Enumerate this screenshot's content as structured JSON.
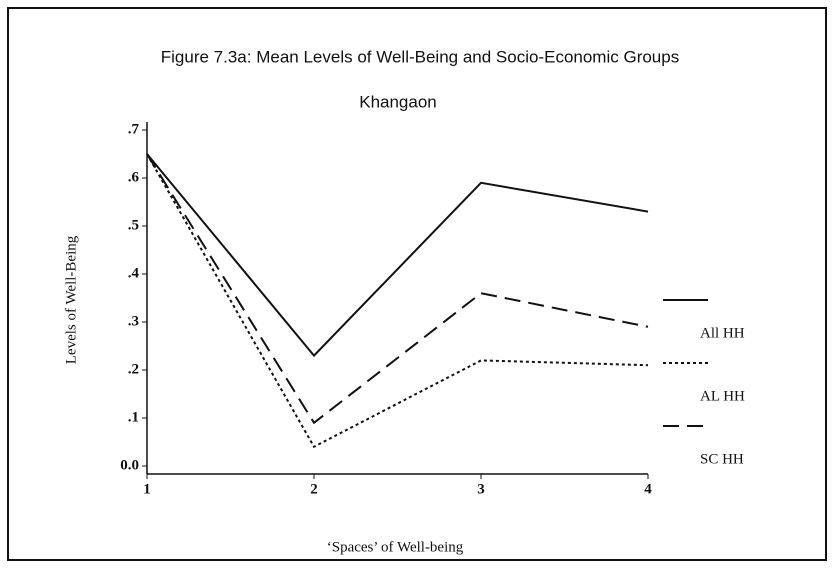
{
  "chart_data": {
    "type": "line",
    "title": "Figure 7.3a: Mean Levels of Well-Being and Socio-Economic Groups",
    "subtitle": "Khangaon",
    "x_label": "‘Spaces’ of Well-being",
    "y_label": "Levels of Well-Being",
    "x": [
      1,
      2,
      3,
      4
    ],
    "series": [
      {
        "name": "All HH",
        "color": "#111111",
        "dash": "solid",
        "values": [
          0.65,
          0.23,
          0.59,
          0.53
        ]
      },
      {
        "name": "AL HH",
        "color": "#111111",
        "dash": "dotted",
        "values": [
          0.65,
          0.04,
          0.22,
          0.21
        ]
      },
      {
        "name": "SC HH",
        "color": "#111111",
        "dash": "dashed",
        "values": [
          0.65,
          0.09,
          0.36,
          0.29
        ]
      }
    ],
    "xlim": [
      1,
      4
    ],
    "xticks": [
      1,
      2,
      3,
      4
    ],
    "ylim": [
      0,
      0.7
    ],
    "yticks": [
      {
        "value": 0,
        "label": "0.0"
      },
      {
        "value": 0.1,
        "label": ".1"
      },
      {
        "value": 0.2,
        "label": ".2"
      },
      {
        "value": 0.3,
        "label": ".3"
      },
      {
        "value": 0.4,
        "label": ".4"
      },
      {
        "value": 0.5,
        "label": ".5"
      },
      {
        "value": 0.6,
        "label": ".6"
      },
      {
        "value": 0.7,
        "label": ".7"
      }
    ],
    "legend": "right"
  }
}
